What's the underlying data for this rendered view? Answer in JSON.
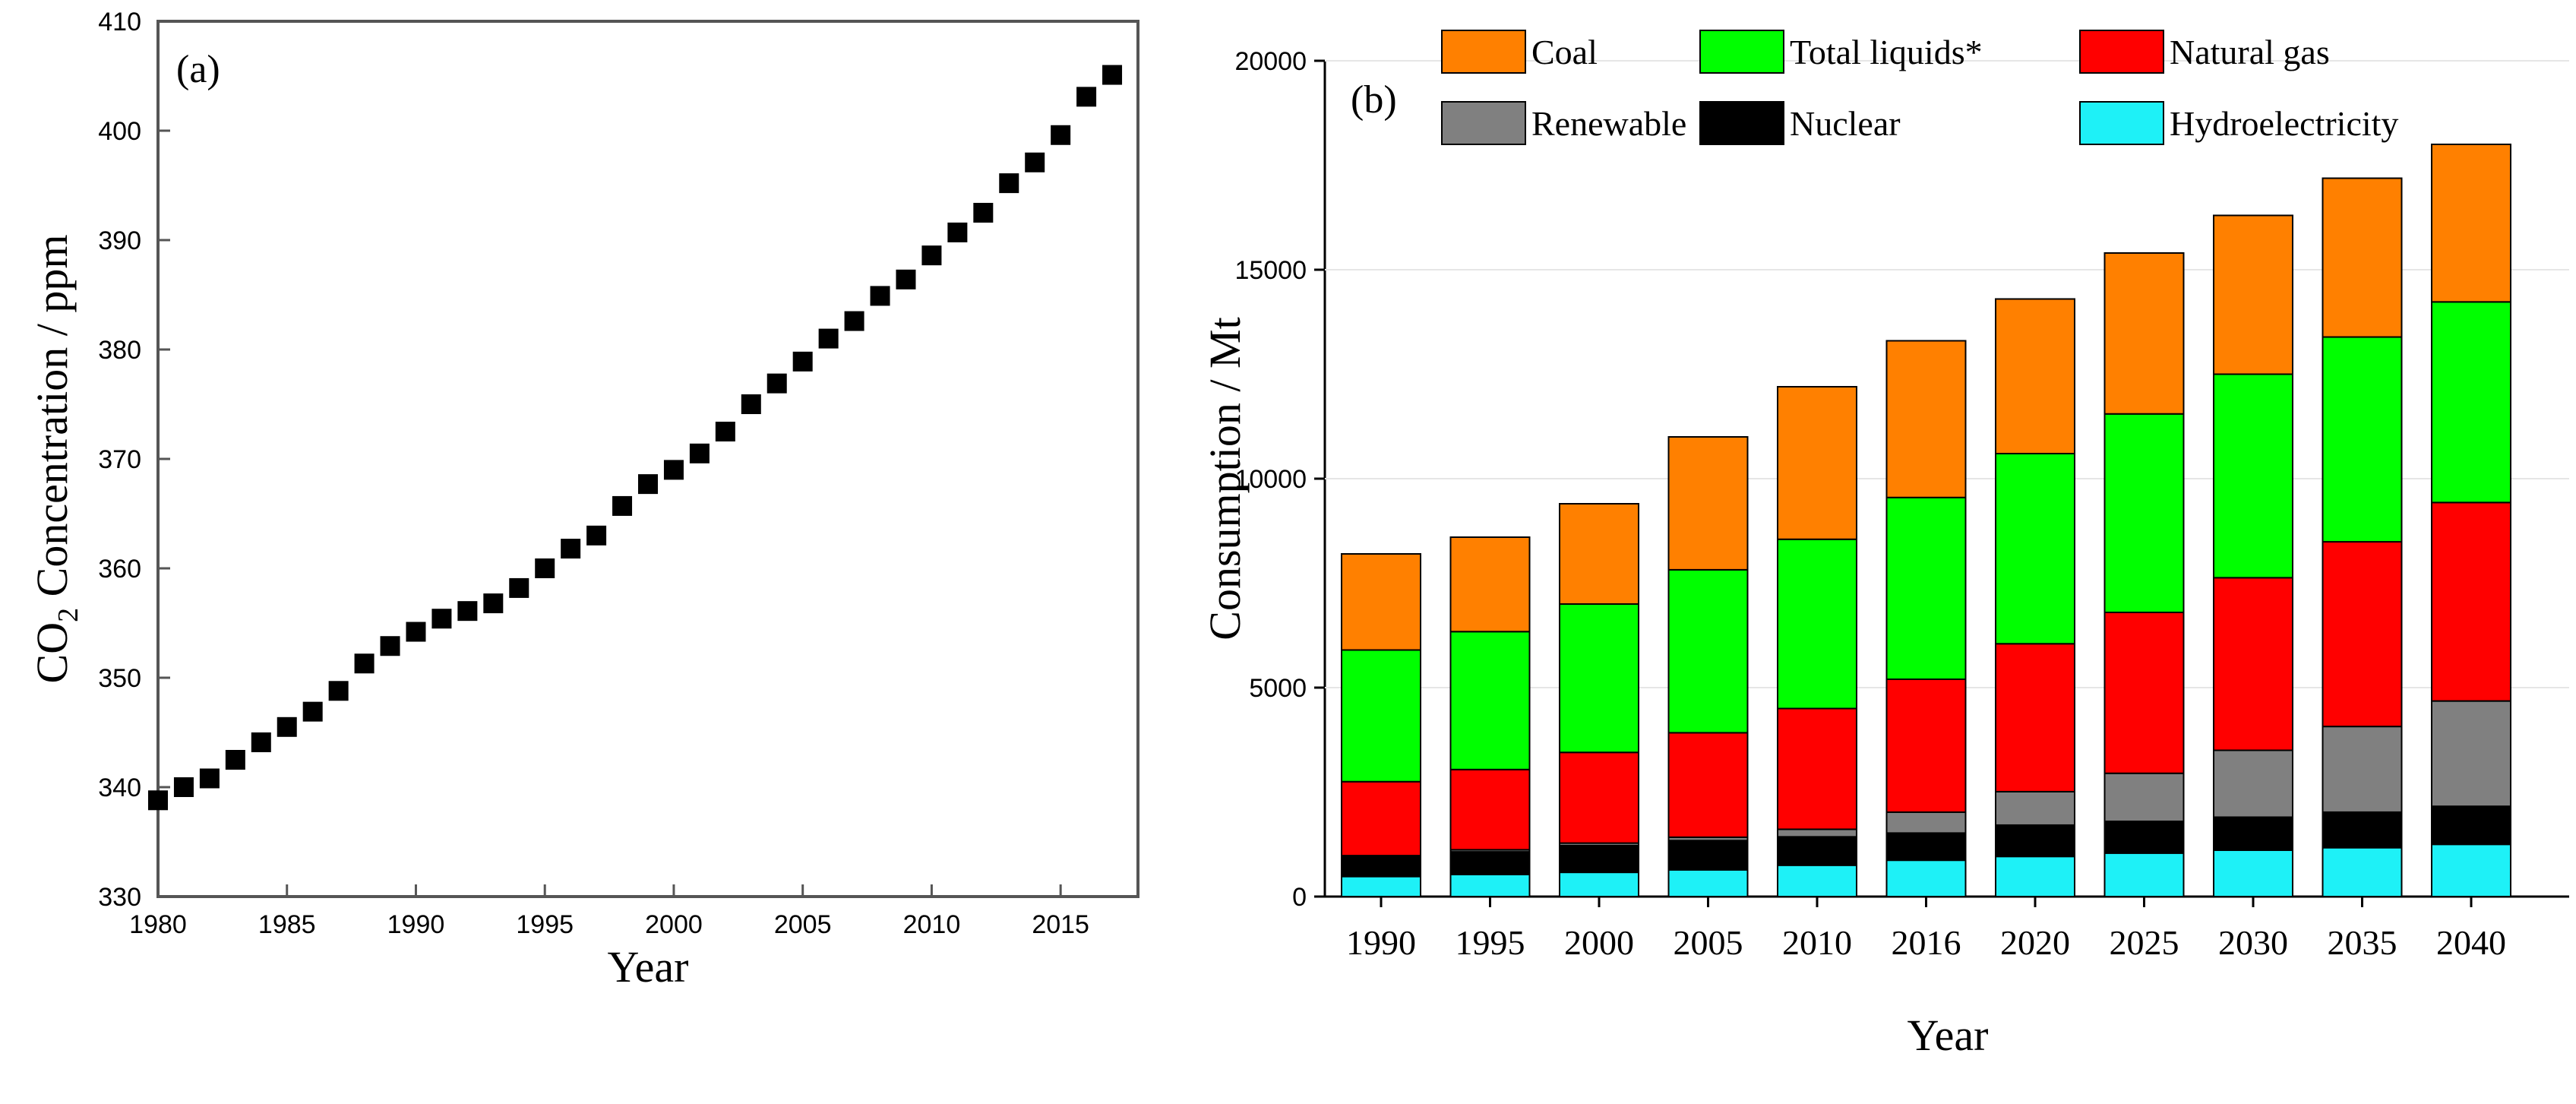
{
  "chart_data": [
    {
      "type": "scatter",
      "panel_label": "(a)",
      "xlabel": "Year",
      "ylabel_main": "CO",
      "ylabel_sub": "2",
      "ylabel_rest": " Concentration / ppm",
      "xlim": [
        1980,
        2018
      ],
      "ylim": [
        330,
        410
      ],
      "xticks": [
        1980,
        1985,
        1990,
        1995,
        2000,
        2005,
        2010,
        2015
      ],
      "yticks": [
        330,
        340,
        350,
        360,
        370,
        380,
        390,
        400,
        410
      ],
      "marker_color": "#000000",
      "x": [
        1980,
        1981,
        1982,
        1983,
        1984,
        1985,
        1986,
        1987,
        1988,
        1989,
        1990,
        1991,
        1992,
        1993,
        1994,
        1995,
        1996,
        1997,
        1998,
        1999,
        2000,
        2001,
        2002,
        2003,
        2004,
        2005,
        2006,
        2007,
        2008,
        2009,
        2010,
        2011,
        2012,
        2013,
        2014,
        2015,
        2016,
        2017
      ],
      "y": [
        338.8,
        340.0,
        340.8,
        342.5,
        344.1,
        345.5,
        346.9,
        348.8,
        351.3,
        352.9,
        354.2,
        355.4,
        356.1,
        356.8,
        358.2,
        360.0,
        361.8,
        363.0,
        365.7,
        367.7,
        369.0,
        370.5,
        372.5,
        375.0,
        376.9,
        378.9,
        381.0,
        382.6,
        384.9,
        386.4,
        388.6,
        390.7,
        392.5,
        395.2,
        397.1,
        399.6,
        403.1,
        405.1
      ]
    },
    {
      "type": "stacked-bar",
      "panel_label": "(b)",
      "xlabel": "Year",
      "ylabel": "Consumption / Mt",
      "ylim": [
        0,
        20000
      ],
      "yticks": [
        0,
        5000,
        10000,
        15000,
        20000
      ],
      "categories": [
        "1990",
        "1995",
        "2000",
        "2005",
        "2010",
        "2016",
        "2020",
        "2025",
        "2030",
        "2035",
        "2040"
      ],
      "series": [
        {
          "name": "Hydroelectricity",
          "color": "#1ef1f7",
          "values": [
            480,
            530,
            580,
            640,
            750,
            870,
            960,
            1040,
            1110,
            1170,
            1250
          ]
        },
        {
          "name": "Nuclear",
          "color": "#000000",
          "values": [
            470,
            540,
            640,
            700,
            680,
            650,
            750,
            760,
            790,
            850,
            910
          ]
        },
        {
          "name": "Renewable",
          "color": "#808080",
          "values": [
            30,
            50,
            60,
            80,
            180,
            500,
            800,
            1150,
            1600,
            2050,
            2520
          ]
        },
        {
          "name": "Natural gas",
          "color": "#ff0000",
          "values": [
            1770,
            1920,
            2170,
            2500,
            2890,
            3180,
            3540,
            3850,
            4130,
            4420,
            4750
          ]
        },
        {
          "name": "Total liquids*",
          "color": "#00ff00",
          "values": [
            3150,
            3300,
            3550,
            3900,
            4050,
            4350,
            4550,
            4750,
            4870,
            4900,
            4800
          ]
        },
        {
          "name": "Coal",
          "color": "#ff8000",
          "values": [
            2300,
            2260,
            2400,
            3180,
            3650,
            3750,
            3700,
            3850,
            3800,
            3800,
            3770
          ]
        }
      ],
      "legend": {
        "placement": "top",
        "rows": [
          [
            "Coal",
            "Total liquids*",
            "Natural gas"
          ],
          [
            "Renewable",
            "Nuclear",
            "Hydroelectricity"
          ]
        ]
      }
    }
  ]
}
